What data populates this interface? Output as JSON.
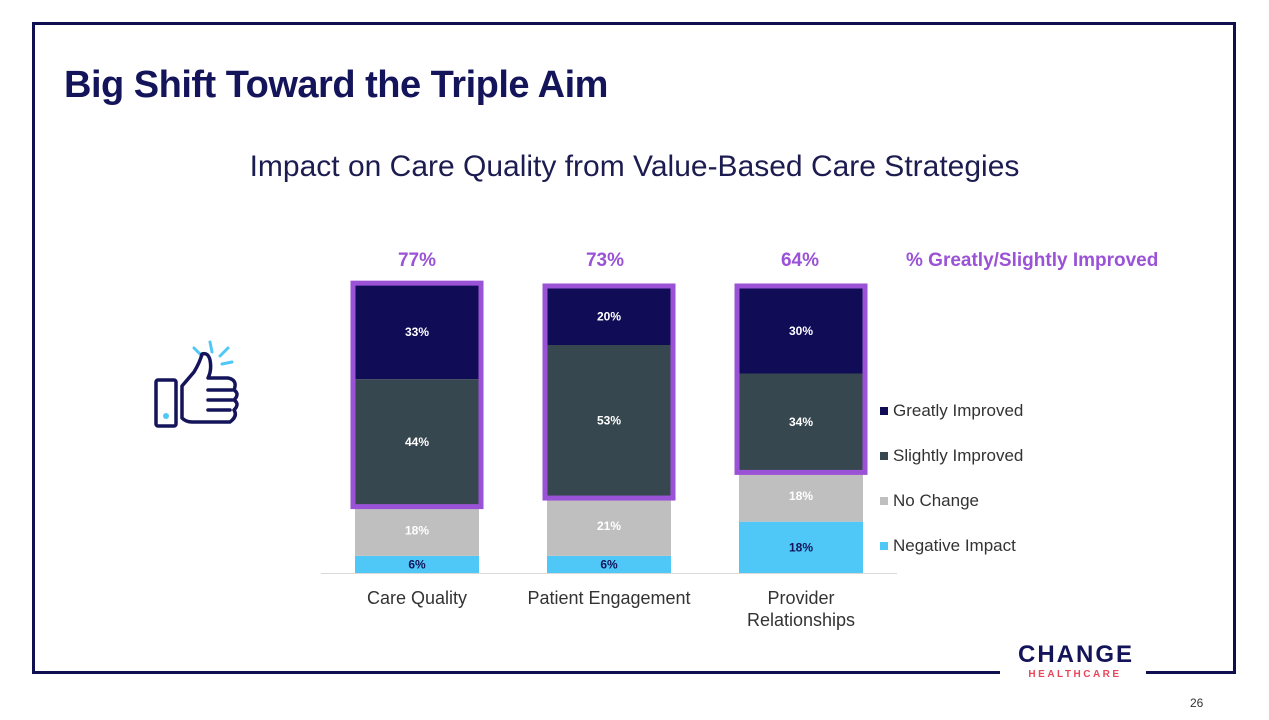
{
  "slide": {
    "title": "Big Shift Toward the Triple Aim",
    "page_number": "26"
  },
  "logo": {
    "main": "CHANGE",
    "sub": "HEALTHCARE"
  },
  "icons": {
    "illustration": "thumbs-up-icon"
  },
  "colors": {
    "greatly": "#100c56",
    "slightly": "#37474f",
    "no_change": "#bfbfbf",
    "negative": "#4fc8f8",
    "highlight": "#9a52d6",
    "title": "#14145a"
  },
  "chart_data": {
    "type": "bar",
    "stacked": true,
    "title": "Impact on Care Quality from Value-Based Care Strategies",
    "categories": [
      "Care Quality",
      "Patient Engagement",
      "Provider Relationships"
    ],
    "series": [
      {
        "name": "Negative Impact",
        "values": [
          6,
          6,
          18
        ],
        "labels": [
          "6%",
          "6%",
          "18%"
        ]
      },
      {
        "name": "No Change",
        "values": [
          18,
          21,
          18
        ],
        "labels": [
          "18%",
          "21%",
          "18%"
        ]
      },
      {
        "name": "Slightly Improved",
        "values": [
          44,
          53,
          34
        ],
        "labels": [
          "44%",
          "53%",
          "34%"
        ]
      },
      {
        "name": "Greatly Improved",
        "values": [
          33,
          20,
          30
        ],
        "labels": [
          "33%",
          "20%",
          "30%"
        ]
      }
    ],
    "improved_totals": [
      "77%",
      "73%",
      "64%"
    ],
    "improved_caption": "% Greatly/Slightly Improved",
    "legend": [
      "Greatly Improved",
      "Slightly Improved",
      "No Change",
      "Negative Impact"
    ],
    "legend_position": "right",
    "grid": false
  }
}
